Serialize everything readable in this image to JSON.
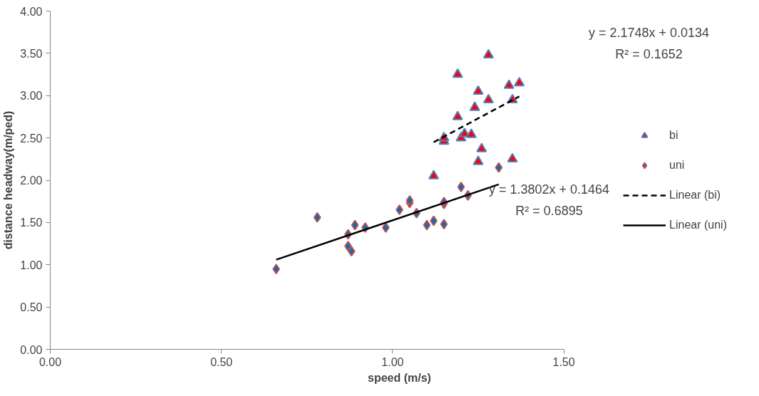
{
  "chart_data": {
    "type": "scatter",
    "xlabel": "speed (m/s)",
    "ylabel": "distance headway(m/ped)",
    "xlim": [
      0,
      1.5
    ],
    "xticks": [
      {
        "value": 0,
        "label": "0.00"
      },
      {
        "value": 0.5,
        "label": "0.50"
      },
      {
        "value": 1,
        "label": "1.00"
      },
      {
        "value": 1.5,
        "label": "1.50"
      }
    ],
    "ylim": [
      0,
      4
    ],
    "yticks": [
      {
        "value": 0,
        "label": "0.00"
      },
      {
        "value": 0.5,
        "label": "0.50"
      },
      {
        "value": 1,
        "label": "1.00"
      },
      {
        "value": 1.5,
        "label": "1.50"
      },
      {
        "value": 2,
        "label": "2.00"
      },
      {
        "value": 2.5,
        "label": "2.50"
      },
      {
        "value": 3,
        "label": "3.00"
      },
      {
        "value": 3.5,
        "label": "3.50"
      },
      {
        "value": 4,
        "label": "4.00"
      }
    ],
    "grid": false,
    "legend": "right",
    "series": [
      {
        "name": "bi",
        "marker": "triangle",
        "color": "#ff0000",
        "x": [
          1.12,
          1.15,
          1.15,
          1.19,
          1.19,
          1.2,
          1.21,
          1.23,
          1.24,
          1.25,
          1.26,
          1.25,
          1.28,
          1.28,
          1.34,
          1.35,
          1.35,
          1.37
        ],
        "values": [
          2.05,
          2.46,
          2.5,
          2.75,
          3.25,
          2.5,
          2.55,
          2.54,
          2.86,
          3.05,
          2.37,
          2.22,
          3.48,
          2.95,
          3.12,
          2.95,
          2.25,
          3.15
        ]
      },
      {
        "name": "uni",
        "marker": "diamond",
        "color": "#0070c0",
        "x": [
          0.66,
          0.78,
          0.87,
          0.87,
          0.88,
          0.89,
          0.92,
          0.98,
          1.02,
          1.05,
          1.05,
          1.07,
          1.1,
          1.12,
          1.15,
          1.15,
          1.15,
          1.2,
          1.22,
          1.31
        ],
        "values": [
          0.95,
          1.56,
          1.36,
          1.22,
          1.16,
          1.47,
          1.44,
          1.44,
          1.65,
          1.73,
          1.76,
          1.61,
          1.47,
          1.52,
          1.48,
          1.72,
          1.74,
          1.92,
          1.82,
          2.15
        ]
      },
      {
        "name": "Linear (bi)",
        "type": "line",
        "line_style": "dashed",
        "color": "#000000",
        "x": [
          1.12,
          1.37
        ],
        "values": [
          2.45,
          2.99
        ]
      },
      {
        "name": "Linear (uni)",
        "type": "line",
        "line_style": "solid",
        "color": "#000000",
        "x": [
          0.66,
          1.31
        ],
        "values": [
          1.06,
          1.95
        ]
      }
    ],
    "annotations": [
      "y = 2.1748x + 0.0134",
      "R² = 0.1652",
      "y = 1.3802x + 0.1464",
      "R² = 0.6895"
    ]
  }
}
